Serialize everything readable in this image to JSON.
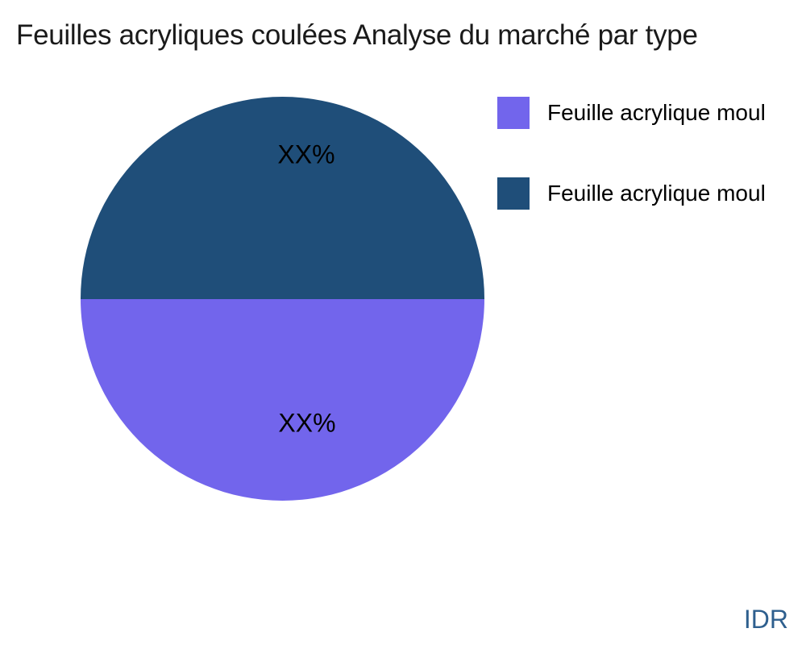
{
  "title": "Feuilles acryliques coulées Analyse du marché par type",
  "chart_data": {
    "type": "pie",
    "title": "Feuilles acryliques coulées Analyse du marché par type",
    "slices": [
      {
        "label": "Feuille acrylique moul",
        "value_pct": 50,
        "display_label": "XX%",
        "color": "#7265ec",
        "position": "bottom-half"
      },
      {
        "label": "Feuille acrylique moul",
        "value_pct": 50,
        "display_label": "XX%",
        "color": "#1f4e79",
        "position": "top-half"
      }
    ],
    "legend": {
      "position": "right",
      "entries": [
        {
          "label": "Feuille acrylique moul",
          "color": "#7265ec"
        },
        {
          "label": "Feuille acrylique moul",
          "color": "#1f4e79"
        }
      ]
    },
    "labels_color": "#000000"
  },
  "watermark": {
    "text": "IDR",
    "color": "#2e5f8e"
  }
}
